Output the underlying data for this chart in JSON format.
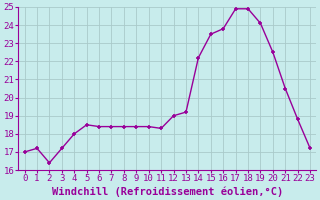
{
  "x": [
    0,
    1,
    2,
    3,
    4,
    5,
    6,
    7,
    8,
    9,
    10,
    11,
    12,
    13,
    14,
    15,
    16,
    17,
    18,
    19,
    20,
    21,
    22,
    23
  ],
  "y": [
    17.0,
    17.2,
    16.4,
    17.2,
    18.0,
    18.5,
    18.4,
    18.4,
    18.4,
    18.4,
    18.4,
    18.3,
    19.0,
    19.2,
    22.2,
    23.5,
    23.8,
    24.9,
    24.9,
    24.1,
    22.5,
    20.5,
    18.8,
    17.2
  ],
  "line_color": "#990099",
  "marker_color": "#990099",
  "bg_color": "#c8ecec",
  "grid_color": "#aacaca",
  "xlabel": "Windchill (Refroidissement éolien,°C)",
  "ylim": [
    16,
    25
  ],
  "xlim_min": -0.5,
  "xlim_max": 23.5,
  "yticks": [
    16,
    17,
    18,
    19,
    20,
    21,
    22,
    23,
    24,
    25
  ],
  "xticks": [
    0,
    1,
    2,
    3,
    4,
    5,
    6,
    7,
    8,
    9,
    10,
    11,
    12,
    13,
    14,
    15,
    16,
    17,
    18,
    19,
    20,
    21,
    22,
    23
  ],
  "tick_label_fontsize": 6.5,
  "xlabel_fontsize": 7.5,
  "line_width": 1.0,
  "marker_size": 3.0
}
